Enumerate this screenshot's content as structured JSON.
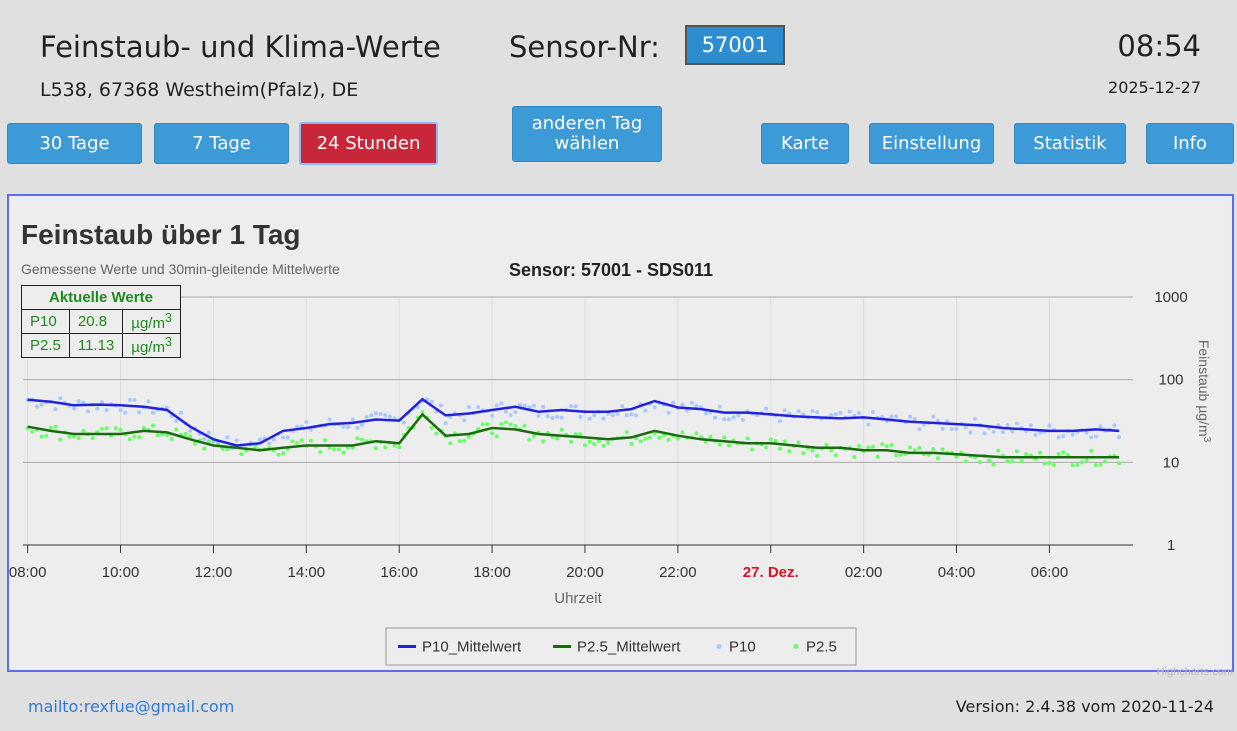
{
  "header": {
    "title": "Feinstaub- und Klima-Werte",
    "sensor_label": "Sensor-Nr:",
    "sensor_number": "57001",
    "clock": "08:54",
    "date": "2025-12-27",
    "location": "L538, 67368 Westheim(Pfalz), DE"
  },
  "nav": {
    "days30": "30 Tage",
    "days7": "7 Tage",
    "hours24": "24 Stunden",
    "other_day_line1": "anderen Tag",
    "other_day_line2": "wählen",
    "map": "Karte",
    "settings": "Einstellung",
    "stats": "Statistik",
    "info": "Info"
  },
  "current": {
    "title": "Aktuelle Werte",
    "rows": [
      {
        "name": "P10",
        "value": "20.8",
        "unit": "µg/m",
        "sup": "3"
      },
      {
        "name": "P2.5",
        "value": "11.13",
        "unit": "µg/m",
        "sup": "3"
      }
    ]
  },
  "colors": {
    "p10_line": "#2222dd",
    "p25_line": "#1a6b0d",
    "p10_points": "#a8c8ff",
    "p25_points": "#66ff66",
    "active_button": "#c8273a",
    "button": "#3c9ad6",
    "date_label": "#dd1122"
  },
  "chart_data": {
    "type": "line",
    "title": "Feinstaub über 1 Tag",
    "subtitle": "Gemessene Werte und 30min-gleitende Mittelwerte",
    "sensor_title": "Sensor: 57001 - SDS011",
    "xlabel": "Uhrzeit",
    "ylabel": "Feinstaub µg/m",
    "ylabel_sup": "3",
    "yscale": "log",
    "ylim": [
      1,
      1000
    ],
    "y_ticks": [
      "1000",
      "100",
      "10",
      "1"
    ],
    "x_ticks": [
      "08:00",
      "10:00",
      "12:00",
      "14:00",
      "16:00",
      "18:00",
      "20:00",
      "22:00",
      "27. Dez.",
      "02:00",
      "04:00",
      "06:00"
    ],
    "xlim_hours": [
      -0.1,
      23.8
    ],
    "legend": [
      "P10_Mittelwert",
      "P2.5_Mittelwert",
      "P10",
      "P2.5"
    ],
    "legend_position": "bottom-center",
    "credits": "Highcharts.com",
    "series": [
      {
        "name": "P10_Mittelwert",
        "x": [
          0,
          0.5,
          1,
          1.5,
          2,
          2.5,
          3,
          3.5,
          4,
          4.5,
          5,
          5.5,
          6,
          6.5,
          7,
          7.5,
          8,
          8.5,
          9,
          9.5,
          10,
          10.5,
          11,
          11.5,
          12,
          12.5,
          13,
          13.5,
          14,
          14.5,
          15,
          15.5,
          16,
          16.5,
          17,
          17.5,
          18,
          18.5,
          19,
          19.5,
          20,
          20.5,
          21,
          21.5,
          22,
          22.5,
          23,
          23.5
        ],
        "values": [
          57,
          54,
          49,
          50,
          49,
          47,
          43,
          27,
          19,
          16,
          17,
          24,
          26,
          29,
          30,
          33,
          32,
          58,
          37,
          39,
          43,
          47,
          41,
          43,
          41,
          41,
          44,
          55,
          46,
          44,
          40,
          40,
          38,
          36,
          35,
          34,
          35,
          33,
          31,
          30,
          29,
          28,
          26,
          25,
          24,
          24,
          25,
          24
        ]
      },
      {
        "name": "P2.5_Mittelwert",
        "x": [
          0,
          0.5,
          1,
          1.5,
          2,
          2.5,
          3,
          3.5,
          4,
          4.5,
          5,
          5.5,
          6,
          6.5,
          7,
          7.5,
          8,
          8.5,
          9,
          9.5,
          10,
          10.5,
          11,
          11.5,
          12,
          12.5,
          13,
          13.5,
          14,
          14.5,
          15,
          15.5,
          16,
          16.5,
          17,
          17.5,
          18,
          18.5,
          19,
          19.5,
          20,
          20.5,
          21,
          21.5,
          22,
          22.5,
          23,
          23.5
        ],
        "values": [
          27,
          24,
          22,
          22,
          22,
          24,
          23,
          19,
          16,
          15,
          14,
          15,
          16,
          16,
          16,
          18,
          17,
          38,
          21,
          22,
          26,
          25,
          22,
          21,
          20,
          19,
          20,
          24,
          21,
          19,
          18,
          17,
          17,
          16,
          15,
          15,
          14,
          14,
          13,
          13,
          12.5,
          12,
          11.5,
          11.5,
          11.5,
          11.5,
          11.5,
          11.5
        ]
      }
    ]
  },
  "footer": {
    "mail": "mailto:rexfue@gmail.com",
    "version": "Version: 2.4.38 vom 2020-11-24"
  }
}
